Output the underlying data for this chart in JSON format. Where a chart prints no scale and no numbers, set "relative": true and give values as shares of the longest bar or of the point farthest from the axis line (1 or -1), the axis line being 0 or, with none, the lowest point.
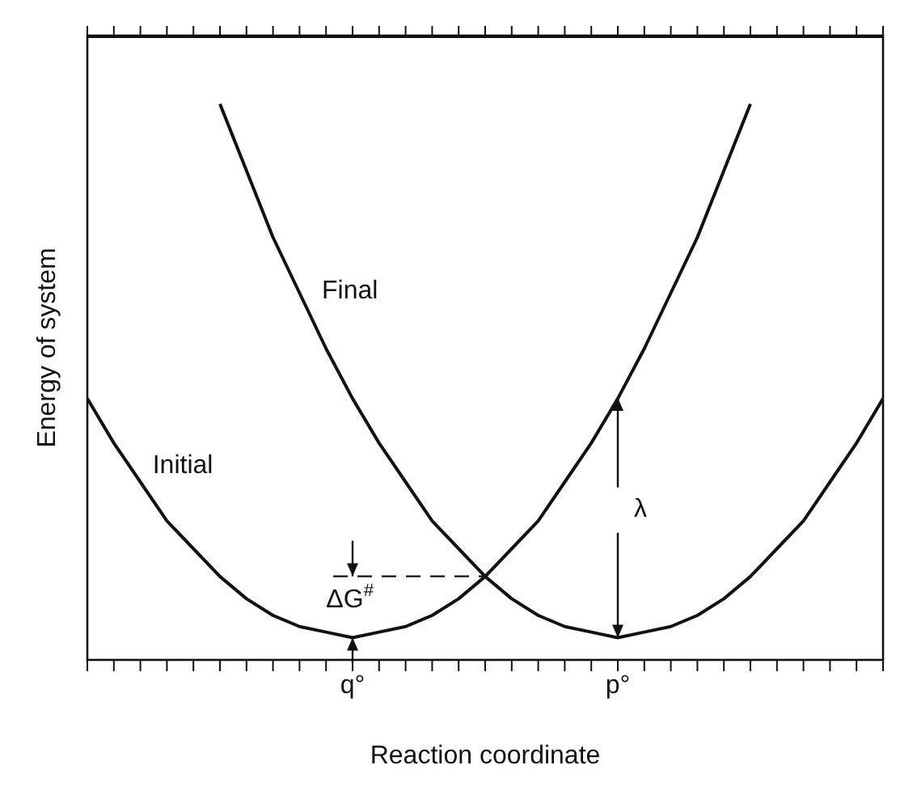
{
  "chart_data": {
    "type": "line",
    "relative": true,
    "xlabel": "Reaction coordinate",
    "ylabel": "Energy of system",
    "marker": "none",
    "categories": [
      null,
      null,
      null,
      null,
      null,
      null,
      null,
      null,
      null,
      null,
      "q°",
      null,
      null,
      null,
      null,
      null,
      null,
      null,
      null,
      null,
      "p°",
      null,
      null,
      null,
      null,
      null,
      null,
      null,
      null,
      null,
      null
    ],
    "series": [
      {
        "color": "#111111",
        "values": [
          0.47,
          0.39,
          0.32,
          0.25,
          0.2,
          0.15,
          0.11,
          0.08,
          0.06,
          0.05,
          0.04,
          0.05,
          0.06,
          0.08,
          0.11,
          0.15,
          0.2,
          0.25,
          0.32,
          0.39,
          0.47,
          0.56,
          0.66,
          0.76,
          0.88,
          1.0,
          null,
          null,
          null,
          null,
          null
        ]
      },
      {
        "color": "#111111",
        "values": [
          null,
          null,
          null,
          null,
          null,
          1.0,
          0.88,
          0.76,
          0.66,
          0.56,
          0.47,
          0.39,
          0.32,
          0.25,
          0.2,
          0.15,
          0.11,
          0.08,
          0.06,
          0.05,
          0.04,
          0.05,
          0.06,
          0.08,
          0.11,
          0.15,
          0.2,
          0.25,
          0.32,
          0.39,
          0.47
        ]
      }
    ],
    "annotations": [
      "Initial",
      "Final",
      "ΔG$^{#}$",
      "λ"
    ]
  }
}
